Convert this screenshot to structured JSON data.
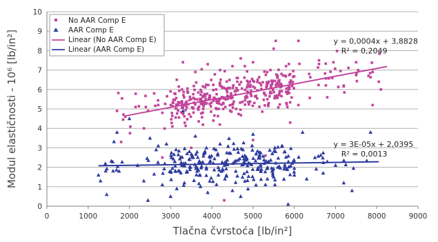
{
  "chart_data": {
    "type": "scatter",
    "title": "",
    "xlabel": "Tlačna čvrstoća [lb/in²]",
    "ylabel": "Modul elastičnosti - 10⁶ [lb/in²]",
    "xlim": [
      0,
      9000
    ],
    "ylim": [
      0,
      10
    ],
    "x_ticks": [
      "0",
      "1000",
      "2000",
      "3000",
      "4000",
      "5000",
      "6000",
      "7000",
      "8000",
      "9000"
    ],
    "y_ticks": [
      "0",
      "1",
      "2",
      "3",
      "4",
      "5",
      "6",
      "7",
      "8",
      "9",
      "10"
    ],
    "grid": "horizontal",
    "legend_position": "top-left",
    "legend": [
      "No AAR Comp E",
      "AAR Comp E",
      "Linear (No AAR Comp E)",
      "Linear (AAR Comp E)"
    ],
    "colors": {
      "no_aar": "#c2449b",
      "aar": "#2e3b9e",
      "grid": "#b0b0b0",
      "axis": "#808080"
    },
    "series": [
      {
        "name": "No AAR Comp E",
        "marker": "square",
        "count": 440,
        "x_range": [
          1650,
          8100
        ],
        "y_range": [
          0.3,
          8.6
        ],
        "trend": {
          "slope": 0.0004,
          "intercept": 3.8828,
          "r2": 0.2049
        },
        "points": [
          [
            1700,
            4.9
          ],
          [
            1800,
            3.3
          ],
          [
            1900,
            4.6
          ],
          [
            2150,
            5.1
          ],
          [
            2400,
            5.1
          ],
          [
            2600,
            5.8
          ],
          [
            2700,
            5.2
          ],
          [
            2800,
            4.8
          ],
          [
            3000,
            5.9
          ],
          [
            3150,
            6.5
          ],
          [
            3300,
            7.4
          ],
          [
            3600,
            6.9
          ],
          [
            3900,
            7.3
          ],
          [
            4200,
            7.0
          ],
          [
            4500,
            7.2
          ],
          [
            4700,
            7.6
          ],
          [
            4800,
            7.2
          ],
          [
            5000,
            7.4
          ],
          [
            5500,
            8.1
          ],
          [
            5550,
            8.5
          ],
          [
            5800,
            7.2
          ],
          [
            6100,
            8.5
          ],
          [
            6600,
            7.5
          ],
          [
            6950,
            7.4
          ],
          [
            7500,
            7.4
          ],
          [
            7550,
            7.0
          ],
          [
            7800,
            6.7
          ],
          [
            7900,
            6.9
          ],
          [
            8050,
            6.4
          ],
          [
            8100,
            6.0
          ],
          [
            2800,
            2.5
          ],
          [
            3500,
            3.0
          ],
          [
            4300,
            0.3
          ],
          [
            5000,
            3.4
          ],
          [
            5300,
            2.6
          ],
          [
            6100,
            5.2
          ],
          [
            5900,
            4.3
          ],
          [
            7900,
            5.2
          ],
          [
            6800,
            5.6
          ],
          [
            7200,
            6.2
          ]
        ]
      },
      {
        "name": "AAR Comp E",
        "marker": "triangle",
        "count": 300,
        "x_range": [
          1250,
          7850
        ],
        "y_range": [
          0.0,
          5.1
        ],
        "trend": {
          "slope": 3e-05,
          "intercept": 2.0395,
          "r2": 0.0013
        },
        "points": [
          [
            1250,
            1.6
          ],
          [
            1300,
            1.3
          ],
          [
            1450,
            0.6
          ],
          [
            1700,
            3.8
          ],
          [
            1750,
            1.8
          ],
          [
            2000,
            4.5
          ],
          [
            2200,
            2.1
          ],
          [
            2350,
            1.3
          ],
          [
            2450,
            0.3
          ],
          [
            2500,
            3.5
          ],
          [
            2650,
            2.9
          ],
          [
            2700,
            3.1
          ],
          [
            2800,
            1.1
          ],
          [
            3000,
            0.5
          ],
          [
            3150,
            0.9
          ],
          [
            3300,
            4.9
          ],
          [
            3400,
            2.7
          ],
          [
            3600,
            3.6
          ],
          [
            3900,
            0.7
          ],
          [
            4100,
            2.9
          ],
          [
            4500,
            0.8
          ],
          [
            4700,
            0.5
          ],
          [
            5000,
            3.7
          ],
          [
            5300,
            1.1
          ],
          [
            5500,
            1.5
          ],
          [
            5850,
            0.1
          ],
          [
            6000,
            1.6
          ],
          [
            6200,
            3.8
          ],
          [
            6300,
            1.4
          ],
          [
            6700,
            1.7
          ],
          [
            7000,
            2.1
          ],
          [
            7200,
            1.2
          ],
          [
            7400,
            0.8
          ],
          [
            7850,
            3.8
          ],
          [
            4200,
            3.2
          ],
          [
            3100,
            2.3
          ],
          [
            2900,
            3.2
          ],
          [
            4800,
            2.6
          ],
          [
            5600,
            2.0
          ],
          [
            6500,
            2.5
          ]
        ]
      }
    ],
    "annotations": [
      {
        "text": "y = 0,0004x + 3,8828",
        "x": 6950,
        "y": 8.5
      },
      {
        "text": "R² = 0,2049",
        "x": 6950,
        "y": 8.0
      },
      {
        "text": "y = 3E-05x + 2,0395",
        "x": 6950,
        "y": 3.2
      },
      {
        "text": "R² = 0,0013",
        "x": 6950,
        "y": 2.7
      }
    ]
  }
}
